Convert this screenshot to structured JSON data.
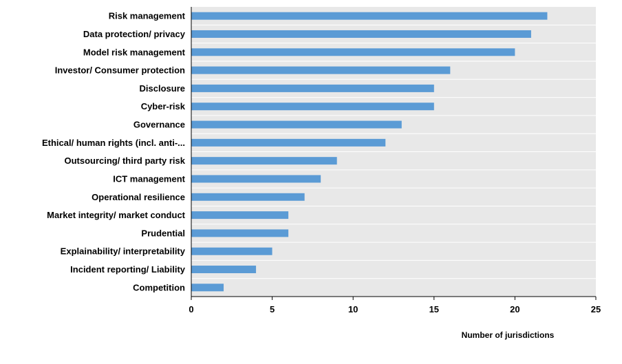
{
  "chart_data": {
    "type": "bar",
    "orientation": "horizontal",
    "title": "",
    "xlabel": "Number of jurisdictions",
    "ylabel": "",
    "categories": [
      "Risk management",
      "Data protection/ privacy",
      "Model risk management",
      "Investor/ Consumer protection",
      "Disclosure",
      "Cyber-risk",
      "Governance",
      "Ethical/ human rights (incl. anti-...",
      "Outsourcing/ third party risk",
      "ICT management",
      "Operational resilience",
      "Market integrity/ market conduct",
      "Prudential",
      "Explainability/ interpretability",
      "Incident reporting/ Liability",
      "Competition"
    ],
    "values": [
      22,
      21,
      20,
      16,
      15,
      15,
      13,
      12,
      9,
      8,
      7,
      6,
      6,
      5,
      4,
      2
    ],
    "xlim": [
      0,
      25
    ],
    "xticks": [
      0,
      5,
      10,
      15,
      20,
      25
    ],
    "grid": true,
    "legend": "none",
    "colors": {
      "bar": "#5b9bd5",
      "plot_bg": "#e8e8e8",
      "grid": "#ffffff",
      "axis": "#000000"
    }
  }
}
